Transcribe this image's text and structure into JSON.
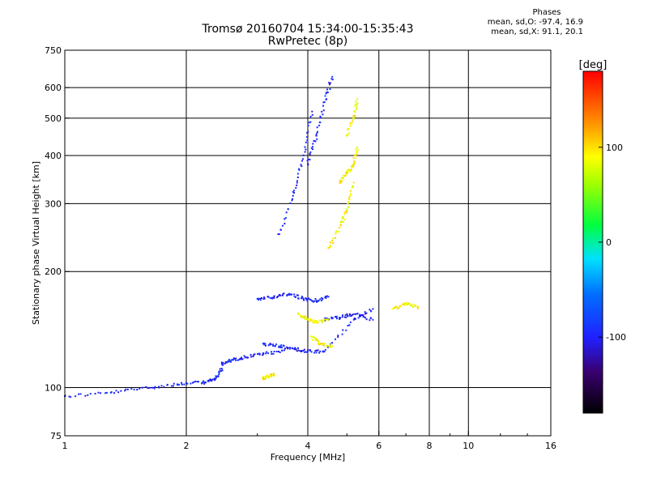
{
  "title_line1": "Tromsø 20160704 15:34:00-15:35:43",
  "title_line2": "RwPretec (8p)",
  "phase_stats": {
    "header": "Phases",
    "line_o": "mean, sd,O: -97.4, 16.9",
    "line_x": "mean, sd,X: 91.1, 20.1"
  },
  "colorbar": {
    "title": "[deg]",
    "ticks": [
      100,
      0,
      -100
    ],
    "range": [
      -180,
      180
    ]
  },
  "chart_data": {
    "type": "scatter",
    "title": "",
    "xlabel": "Frequency [MHz]",
    "ylabel": "Stationary phase Virtual Height [km]",
    "xscale": "log",
    "yscale": "log",
    "xlim": [
      1,
      16
    ],
    "ylim": [
      75,
      750
    ],
    "xticks": [
      1,
      2,
      4,
      6,
      8,
      10,
      16
    ],
    "yticks": [
      75,
      100,
      200,
      300,
      400,
      500,
      600,
      750
    ],
    "grid": true,
    "color_by": "phase (deg)",
    "series": [
      {
        "mode": "O",
        "phase_mean": -97.4,
        "phase_sd": 16.9,
        "traces": [
          {
            "x": [
              1.0,
              1.3,
              1.6,
              1.9,
              2.2,
              2.35,
              2.45
            ],
            "y": [
              95,
              97,
              100,
              102,
              103,
              105,
              112
            ]
          },
          {
            "x": [
              2.45,
              2.6,
              2.8,
              3.1,
              3.5
            ],
            "y": [
              115,
              118,
              120,
              122,
              125
            ]
          },
          {
            "x": [
              3.0,
              3.3,
              3.6,
              3.9,
              4.2,
              4.5
            ],
            "y": [
              170,
              172,
              175,
              170,
              168,
              172
            ]
          },
          {
            "x": [
              3.1,
              3.4,
              3.7,
              4.0,
              4.4,
              5.2,
              5.8
            ],
            "y": [
              130,
              128,
              126,
              124,
              124,
              150,
              160
            ]
          },
          {
            "x": [
              3.4,
              3.7,
              3.9,
              4.1
            ],
            "y": [
              250,
              320,
              400,
              520
            ]
          },
          {
            "x": [
              4.0,
              4.2,
              4.4,
              4.6
            ],
            "y": [
              380,
              450,
              550,
              640
            ]
          },
          {
            "x": [
              4.4,
              4.8,
              5.2,
              5.8
            ],
            "y": [
              150,
              152,
              155,
              150
            ]
          }
        ]
      },
      {
        "mode": "X",
        "phase_mean": 91.1,
        "phase_sd": 20.1,
        "traces": [
          {
            "x": [
              3.1,
              3.2,
              3.3
            ],
            "y": [
              106,
              107,
              108
            ]
          },
          {
            "x": [
              3.8,
              4.0,
              4.2,
              4.5
            ],
            "y": [
              155,
              150,
              148,
              150
            ]
          },
          {
            "x": [
              4.1,
              4.3,
              4.6
            ],
            "y": [
              135,
              130,
              128
            ]
          },
          {
            "x": [
              4.5,
              4.8,
              5.0,
              5.2
            ],
            "y": [
              230,
              260,
              290,
              340
            ]
          },
          {
            "x": [
              4.8,
              5.0,
              5.2,
              5.3
            ],
            "y": [
              340,
              360,
              380,
              420
            ]
          },
          {
            "x": [
              5.0,
              5.2,
              5.3
            ],
            "y": [
              450,
              500,
              560
            ]
          },
          {
            "x": [
              6.5,
              7.0,
              7.5
            ],
            "y": [
              160,
              165,
              162
            ]
          }
        ]
      }
    ]
  }
}
